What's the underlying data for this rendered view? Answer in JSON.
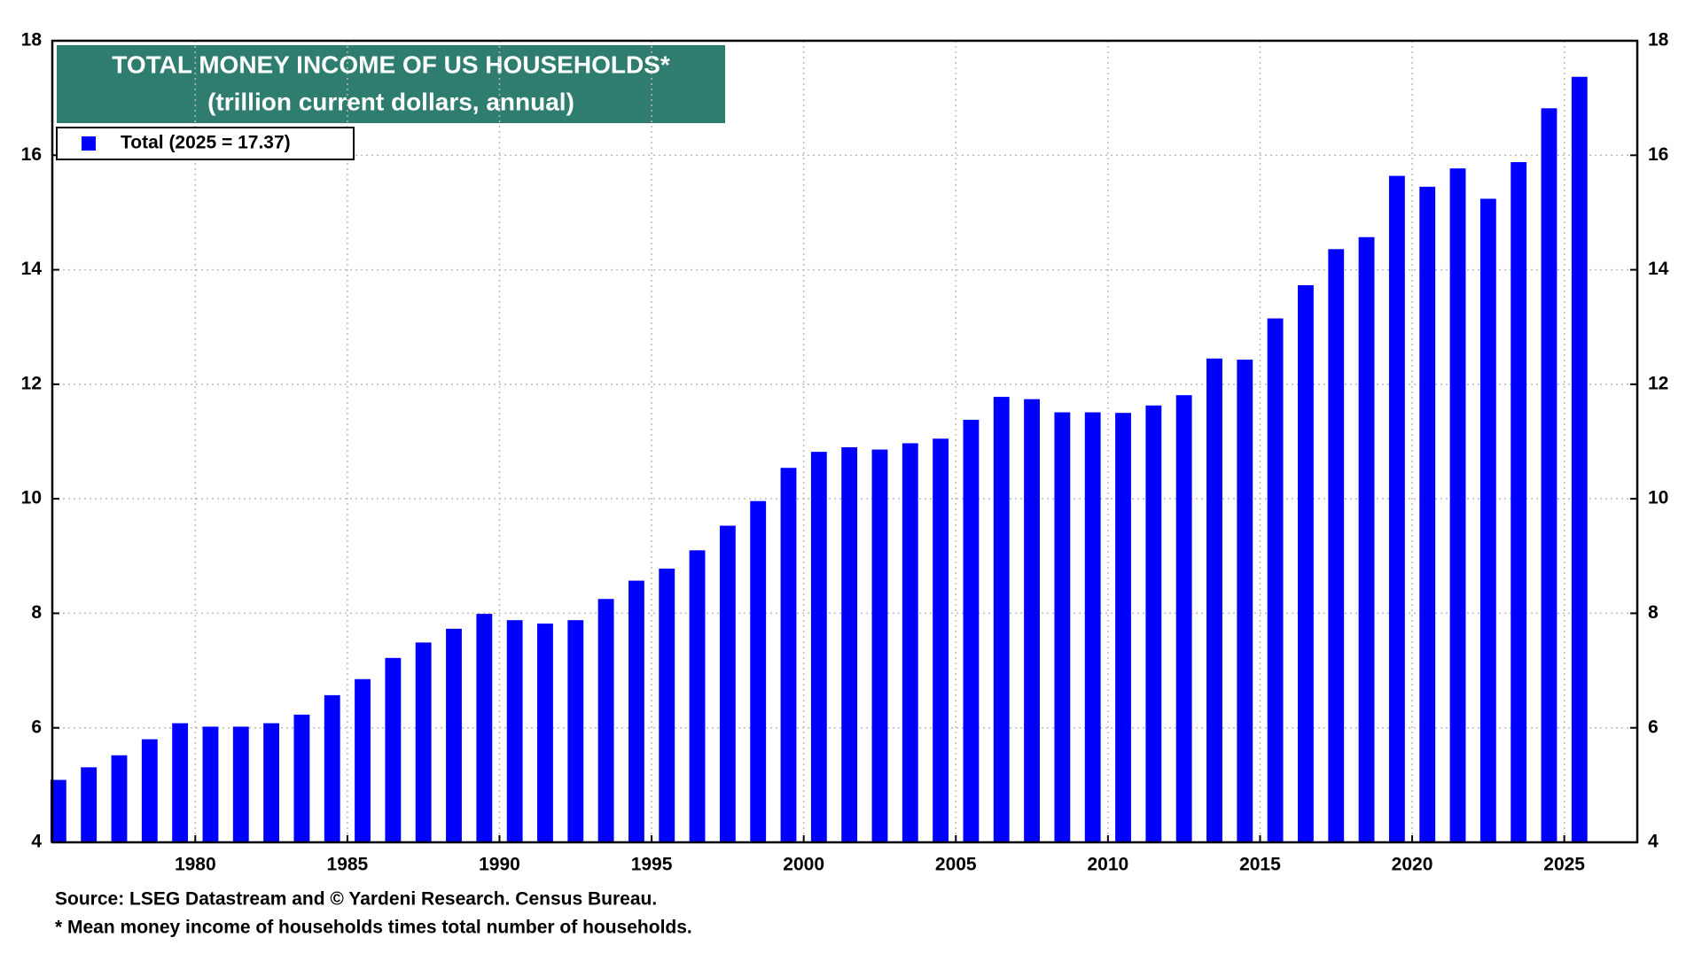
{
  "chart_data": {
    "type": "bar",
    "title": "TOTAL MONEY INCOME OF US HOUSEHOLDS*",
    "subtitle": "(trillion current dollars, annual)",
    "x": [
      1975,
      1976,
      1977,
      1978,
      1979,
      1980,
      1981,
      1982,
      1983,
      1984,
      1985,
      1986,
      1987,
      1988,
      1989,
      1990,
      1991,
      1992,
      1993,
      1994,
      1995,
      1996,
      1997,
      1998,
      1999,
      2000,
      2001,
      2002,
      2003,
      2004,
      2005,
      2006,
      2007,
      2008,
      2009,
      2010,
      2011,
      2012,
      2013,
      2014,
      2015,
      2016,
      2017,
      2018,
      2019,
      2020,
      2021,
      2022,
      2023,
      2024,
      2025
    ],
    "series": [
      {
        "name": "Total (2025 = 17.37)",
        "color": "#0000ff",
        "values": [
          5.09,
          5.31,
          5.52,
          5.8,
          6.08,
          6.02,
          6.02,
          6.08,
          6.23,
          6.57,
          6.85,
          7.22,
          7.49,
          7.73,
          7.99,
          7.88,
          7.82,
          7.88,
          8.25,
          8.57,
          8.78,
          9.1,
          9.53,
          9.96,
          10.54,
          10.82,
          10.9,
          10.86,
          10.97,
          11.05,
          11.38,
          11.78,
          11.74,
          11.51,
          11.51,
          11.5,
          11.63,
          11.81,
          12.45,
          12.43,
          13.15,
          13.73,
          14.36,
          14.57,
          15.64,
          15.45,
          15.77,
          15.24,
          15.88,
          16.82,
          17.37
        ]
      }
    ],
    "xlim": [
      1975.3,
      2027.4
    ],
    "xticks": [
      1980,
      1985,
      1990,
      1995,
      2000,
      2005,
      2010,
      2015,
      2020,
      2025
    ],
    "ylim": [
      4,
      18
    ],
    "yticks": [
      4,
      6,
      8,
      10,
      12,
      14,
      16,
      18
    ],
    "grid": true,
    "source": "Source: LSEG Datastream and © Yardeni Research. Census Bureau.",
    "note": "* Mean money income of households times total number of households."
  }
}
